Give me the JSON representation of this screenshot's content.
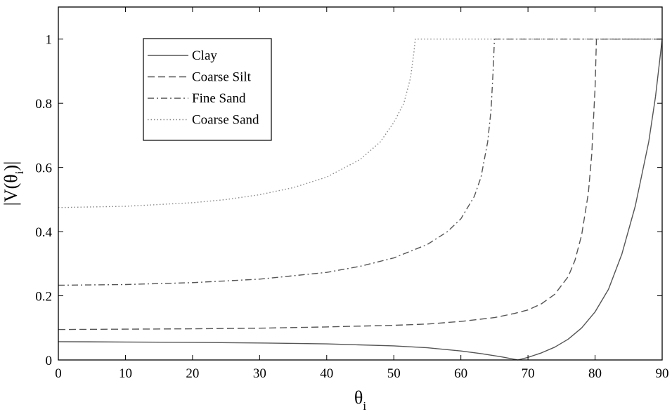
{
  "chart_data": {
    "type": "line",
    "title": "",
    "xlabel": "θ",
    "xlabel_sub": "i",
    "ylabel": "|V(θ",
    "ylabel_sub": "i",
    "ylabel_end": ")|",
    "xlim": [
      0,
      90
    ],
    "ylim": [
      0,
      1.1
    ],
    "xticks": [
      0,
      10,
      20,
      30,
      40,
      50,
      60,
      70,
      80,
      90
    ],
    "xtick_labels": [
      "0",
      "10",
      "20",
      "30",
      "40",
      "50",
      "60",
      "70",
      "80",
      "90"
    ],
    "yticks": [
      0,
      0.2,
      0.4,
      0.6,
      0.8,
      1
    ],
    "ytick_labels": [
      "0",
      "0.2",
      "0.4",
      "0.6",
      "0.8",
      "1"
    ],
    "grid": false,
    "legend_position": "top-left",
    "series": [
      {
        "name": "Clay",
        "style": "solid",
        "color": "#555555",
        "x": [
          0,
          10,
          20,
          30,
          40,
          50,
          55,
          60,
          63,
          66,
          68.5,
          70,
          72,
          74,
          76,
          78,
          80,
          82,
          84,
          86,
          88,
          89,
          90
        ],
        "y": [
          0.057,
          0.056,
          0.055,
          0.053,
          0.05,
          0.044,
          0.038,
          0.028,
          0.02,
          0.01,
          0.0,
          0.008,
          0.022,
          0.04,
          0.065,
          0.1,
          0.15,
          0.22,
          0.33,
          0.48,
          0.68,
          0.82,
          1.0
        ]
      },
      {
        "name": "Coarse Silt",
        "style": "dashed",
        "color": "#555555",
        "x": [
          0,
          10,
          20,
          30,
          40,
          50,
          55,
          60,
          65,
          68,
          70,
          72,
          74,
          76,
          77,
          78,
          79,
          79.5,
          80,
          80.2,
          90
        ],
        "y": [
          0.095,
          0.096,
          0.097,
          0.099,
          0.103,
          0.108,
          0.112,
          0.12,
          0.132,
          0.145,
          0.156,
          0.175,
          0.205,
          0.26,
          0.31,
          0.39,
          0.52,
          0.64,
          0.85,
          1.0,
          1.0
        ]
      },
      {
        "name": "Fine Sand",
        "style": "dashdot",
        "color": "#555555",
        "x": [
          0,
          10,
          20,
          30,
          40,
          45,
          50,
          55,
          58,
          60,
          62,
          63,
          64,
          64.5,
          64.8,
          65,
          90
        ],
        "y": [
          0.233,
          0.235,
          0.241,
          0.252,
          0.273,
          0.292,
          0.318,
          0.36,
          0.4,
          0.44,
          0.51,
          0.57,
          0.68,
          0.78,
          0.9,
          1.0,
          1.0
        ]
      },
      {
        "name": "Coarse Sand",
        "style": "dotted",
        "color": "#888888",
        "x": [
          0,
          10,
          20,
          25,
          30,
          35,
          40,
          45,
          48,
          50,
          51.5,
          52.5,
          53,
          53.2,
          90
        ],
        "y": [
          0.475,
          0.479,
          0.49,
          0.5,
          0.515,
          0.537,
          0.57,
          0.625,
          0.68,
          0.74,
          0.8,
          0.88,
          0.96,
          1.0,
          1.0
        ]
      }
    ]
  }
}
